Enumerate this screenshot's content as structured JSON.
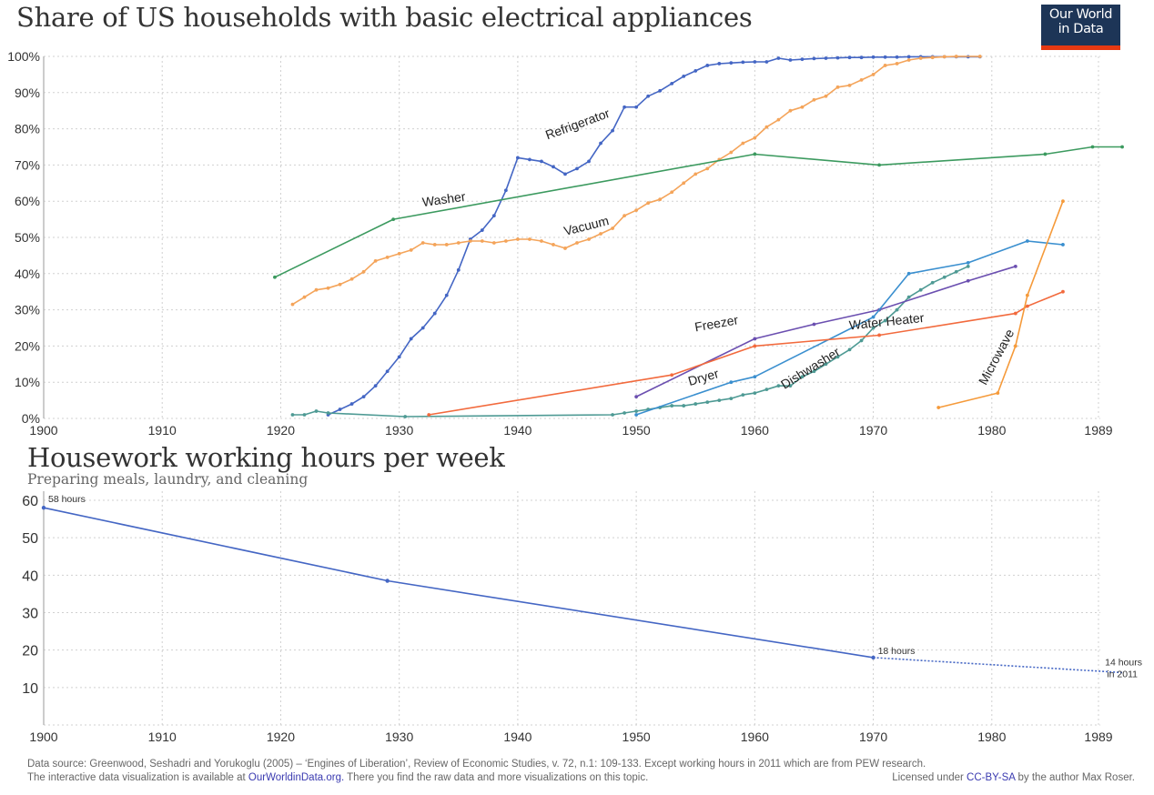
{
  "logo": {
    "line1": "Our World",
    "line2": "in Data"
  },
  "chart_data": [
    {
      "type": "line",
      "title": "Share of US households with basic electrical appliances",
      "xlabel": "",
      "ylabel": "",
      "xlim": [
        1900,
        1989
      ],
      "ylim": [
        0,
        100
      ],
      "x_ticks": [
        "1900",
        "1910",
        "1920",
        "1930",
        "1940",
        "1950",
        "1960",
        "1970",
        "1980",
        "1989"
      ],
      "x_tick_values": [
        1900,
        1910,
        1920,
        1930,
        1940,
        1950,
        1960,
        1970,
        1980,
        1989
      ],
      "y_ticks": [
        "0%",
        "10%",
        "20%",
        "30%",
        "40%",
        "50%",
        "60%",
        "70%",
        "80%",
        "90%",
        "100%"
      ],
      "y_tick_values": [
        0,
        10,
        20,
        30,
        40,
        50,
        60,
        70,
        80,
        90,
        100
      ],
      "grid": true,
      "legend": "inline labels",
      "series": [
        {
          "name": "Refrigerator",
          "color": "#4466c4",
          "points": [
            [
              1924,
              1
            ],
            [
              1925,
              2.5
            ],
            [
              1926,
              4
            ],
            [
              1927,
              6
            ],
            [
              1928,
              9
            ],
            [
              1929,
              13
            ],
            [
              1930,
              17
            ],
            [
              1931,
              22
            ],
            [
              1932,
              25
            ],
            [
              1933,
              29
            ],
            [
              1934,
              34
            ],
            [
              1935,
              41
            ],
            [
              1936,
              49.5
            ],
            [
              1937,
              52
            ],
            [
              1938,
              56
            ],
            [
              1939,
              63
            ],
            [
              1940,
              72
            ],
            [
              1941,
              71.5
            ],
            [
              1942,
              71
            ],
            [
              1943,
              69.5
            ],
            [
              1944,
              67.5
            ],
            [
              1945,
              69
            ],
            [
              1946,
              71
            ],
            [
              1947,
              76
            ],
            [
              1948,
              79.5
            ],
            [
              1949,
              86
            ],
            [
              1950,
              86
            ],
            [
              1951,
              89
            ],
            [
              1952,
              90.5
            ],
            [
              1953,
              92.5
            ],
            [
              1954,
              94.5
            ],
            [
              1955,
              96
            ],
            [
              1956,
              97.5
            ],
            [
              1957,
              98
            ],
            [
              1958,
              98.2
            ],
            [
              1959,
              98.4
            ],
            [
              1960,
              98.5
            ],
            [
              1961,
              98.5
            ],
            [
              1962,
              99.5
            ],
            [
              1963,
              99
            ],
            [
              1964,
              99.2
            ],
            [
              1965,
              99.4
            ],
            [
              1966,
              99.5
            ],
            [
              1967,
              99.6
            ],
            [
              1968,
              99.7
            ],
            [
              1969,
              99.7
            ],
            [
              1970,
              99.8
            ],
            [
              1971,
              99.8
            ],
            [
              1972,
              99.8
            ],
            [
              1973,
              99.9
            ],
            [
              1974,
              99.9
            ],
            [
              1975,
              99.9
            ],
            [
              1976,
              99.9
            ],
            [
              1977,
              99.9
            ],
            [
              1978,
              99.9
            ],
            [
              1979,
              99.9
            ]
          ]
        },
        {
          "name": "Vacuum",
          "color": "#f4a45a",
          "points": [
            [
              1921,
              31.5
            ],
            [
              1922,
              33.5
            ],
            [
              1923,
              35.5
            ],
            [
              1924,
              36
            ],
            [
              1925,
              37
            ],
            [
              1926,
              38.5
            ],
            [
              1927,
              40.5
            ],
            [
              1928,
              43.5
            ],
            [
              1929,
              44.5
            ],
            [
              1930,
              45.5
            ],
            [
              1931,
              46.5
            ],
            [
              1932,
              48.5
            ],
            [
              1933,
              48
            ],
            [
              1934,
              48
            ],
            [
              1935,
              48.5
            ],
            [
              1936,
              49
            ],
            [
              1937,
              49
            ],
            [
              1938,
              48.5
            ],
            [
              1939,
              49
            ],
            [
              1940,
              49.5
            ],
            [
              1941,
              49.5
            ],
            [
              1942,
              49
            ],
            [
              1943,
              48
            ],
            [
              1944,
              47
            ],
            [
              1945,
              48.5
            ],
            [
              1946,
              49.5
            ],
            [
              1947,
              51
            ],
            [
              1948,
              52.5
            ],
            [
              1949,
              56
            ],
            [
              1950,
              57.5
            ],
            [
              1951,
              59.5
            ],
            [
              1952,
              60.5
            ],
            [
              1953,
              62.5
            ],
            [
              1954,
              65
            ],
            [
              1955,
              67.5
            ],
            [
              1956,
              69
            ],
            [
              1957,
              71.5
            ],
            [
              1958,
              73.5
            ],
            [
              1959,
              76
            ],
            [
              1960,
              77.5
            ],
            [
              1961,
              80.5
            ],
            [
              1962,
              82.5
            ],
            [
              1963,
              85
            ],
            [
              1964,
              86
            ],
            [
              1965,
              88
            ],
            [
              1966,
              89
            ],
            [
              1967,
              91.5
            ],
            [
              1968,
              92
            ],
            [
              1969,
              93.5
            ],
            [
              1970,
              95
            ],
            [
              1971,
              97.5
            ],
            [
              1972,
              98
            ],
            [
              1973,
              99
            ],
            [
              1974,
              99.5
            ],
            [
              1975,
              99.7
            ],
            [
              1976,
              99.9
            ],
            [
              1977,
              100
            ],
            [
              1979,
              100
            ]
          ]
        },
        {
          "name": "Washer",
          "color": "#3c9a5f",
          "points": [
            [
              1919.5,
              39
            ],
            [
              1929.5,
              55
            ],
            [
              1960,
              73
            ],
            [
              1970.5,
              70
            ],
            [
              1984.5,
              73
            ],
            [
              1988.5,
              75
            ],
            [
              1991,
              75
            ]
          ]
        },
        {
          "name": "Dishwasher",
          "color": "#4e9a94",
          "points": [
            [
              1921,
              1
            ],
            [
              1922,
              1
            ],
            [
              1923,
              2
            ],
            [
              1924,
              1.5
            ],
            [
              1930.5,
              0.5
            ],
            [
              1948,
              1
            ],
            [
              1949,
              1.5
            ],
            [
              1950,
              2
            ],
            [
              1951,
              2.5
            ],
            [
              1952,
              3
            ],
            [
              1953,
              3.5
            ],
            [
              1954,
              3.5
            ],
            [
              1955,
              4
            ],
            [
              1956,
              4.5
            ],
            [
              1957,
              5
            ],
            [
              1958,
              5.5
            ],
            [
              1959,
              6.5
            ],
            [
              1960,
              7
            ],
            [
              1961,
              8
            ],
            [
              1962,
              9
            ],
            [
              1963,
              9
            ],
            [
              1964,
              11.5
            ],
            [
              1965,
              13
            ],
            [
              1966,
              15
            ],
            [
              1967,
              17
            ],
            [
              1968,
              19
            ],
            [
              1969,
              21.5
            ],
            [
              1970,
              25
            ],
            [
              1971,
              27
            ],
            [
              1972,
              30
            ],
            [
              1973,
              33.5
            ],
            [
              1974,
              35.5
            ],
            [
              1975,
              37.5
            ],
            [
              1976,
              39
            ],
            [
              1977,
              40.5
            ],
            [
              1978,
              42
            ]
          ]
        },
        {
          "name": "Freezer",
          "color": "#6b4fb0",
          "points": [
            [
              1950,
              6
            ],
            [
              1960,
              22
            ],
            [
              1965,
              26
            ],
            [
              1970.5,
              30
            ],
            [
              1978,
              38
            ],
            [
              1982,
              42
            ]
          ]
        },
        {
          "name": "Dryer",
          "color": "#3a8fcf",
          "points": [
            [
              1950,
              1
            ],
            [
              1958,
              10
            ],
            [
              1960,
              11.5
            ],
            [
              1970,
              28
            ],
            [
              1973,
              40
            ],
            [
              1978,
              43
            ],
            [
              1983,
              49
            ],
            [
              1986,
              48
            ]
          ]
        },
        {
          "name": "Water Heater",
          "color": "#f26a3d",
          "points": [
            [
              1932.5,
              1
            ],
            [
              1953,
              12
            ],
            [
              1960,
              20
            ],
            [
              1970.5,
              23
            ],
            [
              1982,
              29
            ],
            [
              1983,
              31
            ],
            [
              1986,
              35
            ]
          ]
        },
        {
          "name": "Microwave",
          "color": "#f59a3a",
          "points": [
            [
              1975.5,
              3
            ],
            [
              1980.5,
              7
            ],
            [
              1982,
              20
            ],
            [
              1983,
              34
            ],
            [
              1986,
              60
            ]
          ]
        }
      ]
    },
    {
      "type": "line",
      "title": "Housework working hours per week",
      "subtitle": "Preparing meals, laundry, and cleaning",
      "xlabel": "",
      "ylabel": "",
      "xlim": [
        1900,
        1989
      ],
      "ylim": [
        0,
        60
      ],
      "x_ticks": [
        "1900",
        "1910",
        "1920",
        "1930",
        "1940",
        "1950",
        "1960",
        "1970",
        "1980",
        "1989"
      ],
      "x_tick_values": [
        1900,
        1910,
        1920,
        1930,
        1940,
        1950,
        1960,
        1970,
        1980,
        1989
      ],
      "y_ticks": [
        "10",
        "20",
        "30",
        "40",
        "50",
        "60"
      ],
      "y_tick_values": [
        10,
        20,
        30,
        40,
        50,
        60
      ],
      "grid": true,
      "series": [
        {
          "name": "Housework hours",
          "color": "#4466c4",
          "style": "solid",
          "points": [
            [
              1900,
              58
            ],
            [
              1929,
              38.5
            ],
            [
              1970,
              18
            ]
          ]
        },
        {
          "name": "Housework hours (to 2011)",
          "color": "#4466c4",
          "style": "dotted",
          "points": [
            [
              1970,
              18
            ],
            [
              1991,
              14
            ]
          ]
        }
      ],
      "annotations": [
        {
          "text": "58 hours"
        },
        {
          "text": "18 hours"
        },
        {
          "text": "14 hours"
        },
        {
          "text": "in 2011"
        }
      ]
    }
  ],
  "footer": {
    "line1": "Data source: Greenwood, Seshadri and Yorukoglu (2005) – ‘Engines of Liberation’, Review of Economic Studies, v. 72, n.1: 109-133. Except working hours in 2011 which are from PEW research.",
    "line2_prefix": "The interactive data visualization is available at ",
    "line2_link": "OurWorldinData.org.",
    "line2_suffix": " There you find the raw data and more visualizations on this topic.",
    "license_prefix": "Licensed under ",
    "license_link": "CC-BY-SA",
    "license_suffix": " by the author Max Roser."
  }
}
